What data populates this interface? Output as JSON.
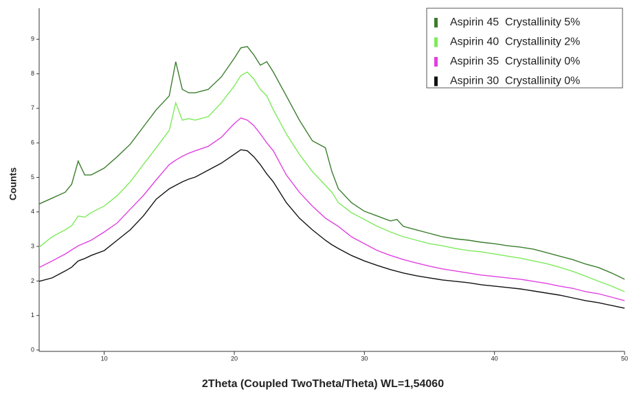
{
  "chart_data": {
    "type": "line",
    "x_label": "2Theta (Coupled TwoTheta/Theta) WL=1,54060",
    "y_label": "Counts",
    "x": [
      5,
      6,
      7,
      7.5,
      8,
      8.5,
      9,
      10,
      11,
      12,
      13,
      14,
      15,
      15.5,
      16,
      16.5,
      17,
      18,
      19,
      20,
      20.5,
      21,
      21.5,
      22,
      22.5,
      23,
      24,
      25,
      26,
      27,
      27.5,
      28,
      29,
      30,
      31,
      32,
      32.5,
      33,
      34,
      35,
      36,
      37,
      38,
      39,
      40,
      41,
      42,
      43,
      44,
      45,
      46,
      47,
      48,
      49,
      50
    ],
    "series": [
      {
        "name": "Aspirin 45  Crystallinity 5%",
        "color": "#3a7d2c",
        "values": [
          4.23,
          4.4,
          4.57,
          4.8,
          5.47,
          5.07,
          5.07,
          5.27,
          5.6,
          5.96,
          6.46,
          6.96,
          7.36,
          8.35,
          7.55,
          7.45,
          7.45,
          7.55,
          7.91,
          8.45,
          8.75,
          8.79,
          8.55,
          8.25,
          8.35,
          8.05,
          7.36,
          6.66,
          6.06,
          5.86,
          5.17,
          4.67,
          4.27,
          4.02,
          3.88,
          3.74,
          3.78,
          3.58,
          3.48,
          3.38,
          3.28,
          3.22,
          3.18,
          3.12,
          3.08,
          3.02,
          2.98,
          2.92,
          2.82,
          2.72,
          2.62,
          2.49,
          2.39,
          2.23,
          2.05
        ]
      },
      {
        "name": "Aspirin 40  Crystallinity 2%",
        "color": "#7dea5a",
        "values": [
          2.98,
          3.28,
          3.48,
          3.6,
          3.88,
          3.85,
          3.98,
          4.17,
          4.47,
          4.87,
          5.37,
          5.86,
          6.36,
          7.16,
          6.66,
          6.7,
          6.66,
          6.76,
          7.16,
          7.65,
          7.95,
          8.05,
          7.85,
          7.55,
          7.36,
          6.96,
          6.26,
          5.67,
          5.17,
          4.77,
          4.57,
          4.27,
          3.98,
          3.78,
          3.58,
          3.42,
          3.35,
          3.28,
          3.18,
          3.08,
          3.02,
          2.94,
          2.88,
          2.84,
          2.78,
          2.72,
          2.66,
          2.58,
          2.5,
          2.4,
          2.28,
          2.14,
          1.99,
          1.85,
          1.69
        ]
      },
      {
        "name": "Aspirin 35  Crystallinity 0%",
        "color": "#e040e0",
        "values": [
          2.39,
          2.58,
          2.78,
          2.9,
          3.02,
          3.1,
          3.18,
          3.42,
          3.68,
          4.08,
          4.47,
          4.93,
          5.37,
          5.5,
          5.61,
          5.7,
          5.77,
          5.9,
          6.16,
          6.56,
          6.72,
          6.66,
          6.5,
          6.26,
          6.0,
          5.77,
          5.07,
          4.57,
          4.17,
          3.82,
          3.7,
          3.58,
          3.28,
          3.08,
          2.88,
          2.74,
          2.68,
          2.62,
          2.52,
          2.43,
          2.35,
          2.29,
          2.23,
          2.17,
          2.13,
          2.09,
          2.05,
          1.99,
          1.93,
          1.85,
          1.79,
          1.69,
          1.63,
          1.53,
          1.43
        ]
      },
      {
        "name": "Aspirin 30  Crystallinity 0%",
        "color": "#111111",
        "values": [
          1.99,
          2.09,
          2.29,
          2.4,
          2.58,
          2.65,
          2.74,
          2.88,
          3.18,
          3.48,
          3.88,
          4.37,
          4.67,
          4.77,
          4.87,
          4.95,
          5.01,
          5.21,
          5.41,
          5.67,
          5.8,
          5.77,
          5.6,
          5.37,
          5.1,
          4.87,
          4.27,
          3.82,
          3.48,
          3.18,
          3.05,
          2.94,
          2.74,
          2.58,
          2.45,
          2.33,
          2.28,
          2.23,
          2.15,
          2.09,
          2.03,
          1.99,
          1.95,
          1.89,
          1.85,
          1.81,
          1.77,
          1.71,
          1.65,
          1.59,
          1.51,
          1.43,
          1.37,
          1.29,
          1.21
        ]
      }
    ],
    "xlim": [
      5,
      50
    ],
    "xticks": [
      10,
      20,
      30,
      40,
      50
    ],
    "ylim": [
      0,
      9.8
    ],
    "yticks": [
      0,
      1,
      2,
      3,
      4,
      5,
      6,
      7,
      8,
      9
    ],
    "legend": "top-right"
  }
}
